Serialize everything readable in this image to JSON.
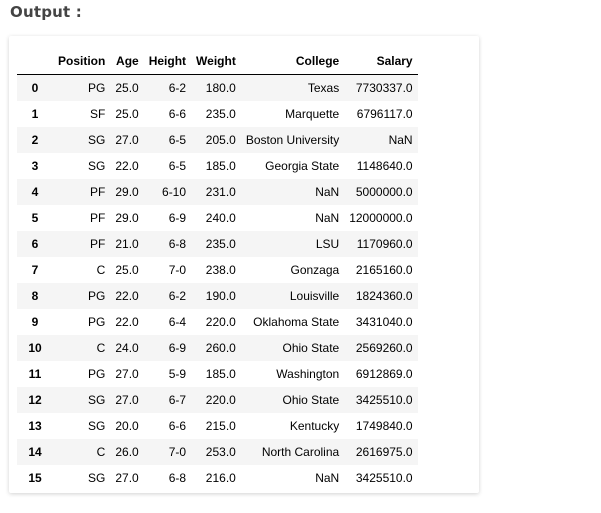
{
  "heading": "Output :",
  "table": {
    "columns": [
      "",
      "Position",
      "Age",
      "Height",
      "Weight",
      "College",
      "Salary"
    ],
    "rows": [
      [
        "0",
        "PG",
        "25.0",
        "6-2",
        "180.0",
        "Texas",
        "7730337.0"
      ],
      [
        "1",
        "SF",
        "25.0",
        "6-6",
        "235.0",
        "Marquette",
        "6796117.0"
      ],
      [
        "2",
        "SG",
        "27.0",
        "6-5",
        "205.0",
        "Boston University",
        "NaN"
      ],
      [
        "3",
        "SG",
        "22.0",
        "6-5",
        "185.0",
        "Georgia State",
        "1148640.0"
      ],
      [
        "4",
        "PF",
        "29.0",
        "6-10",
        "231.0",
        "NaN",
        "5000000.0"
      ],
      [
        "5",
        "PF",
        "29.0",
        "6-9",
        "240.0",
        "NaN",
        "12000000.0"
      ],
      [
        "6",
        "PF",
        "21.0",
        "6-8",
        "235.0",
        "LSU",
        "1170960.0"
      ],
      [
        "7",
        "C",
        "25.0",
        "7-0",
        "238.0",
        "Gonzaga",
        "2165160.0"
      ],
      [
        "8",
        "PG",
        "22.0",
        "6-2",
        "190.0",
        "Louisville",
        "1824360.0"
      ],
      [
        "9",
        "PG",
        "22.0",
        "6-4",
        "220.0",
        "Oklahoma State",
        "3431040.0"
      ],
      [
        "10",
        "C",
        "24.0",
        "6-9",
        "260.0",
        "Ohio State",
        "2569260.0"
      ],
      [
        "11",
        "PG",
        "27.0",
        "5-9",
        "185.0",
        "Washington",
        "6912869.0"
      ],
      [
        "12",
        "SG",
        "27.0",
        "6-7",
        "220.0",
        "Ohio State",
        "3425510.0"
      ],
      [
        "13",
        "SG",
        "20.0",
        "6-6",
        "215.0",
        "Kentucky",
        "1749840.0"
      ],
      [
        "14",
        "C",
        "26.0",
        "7-0",
        "253.0",
        "North Carolina",
        "2616975.0"
      ],
      [
        "15",
        "SG",
        "27.0",
        "6-8",
        "216.0",
        "NaN",
        "3425510.0"
      ]
    ]
  }
}
